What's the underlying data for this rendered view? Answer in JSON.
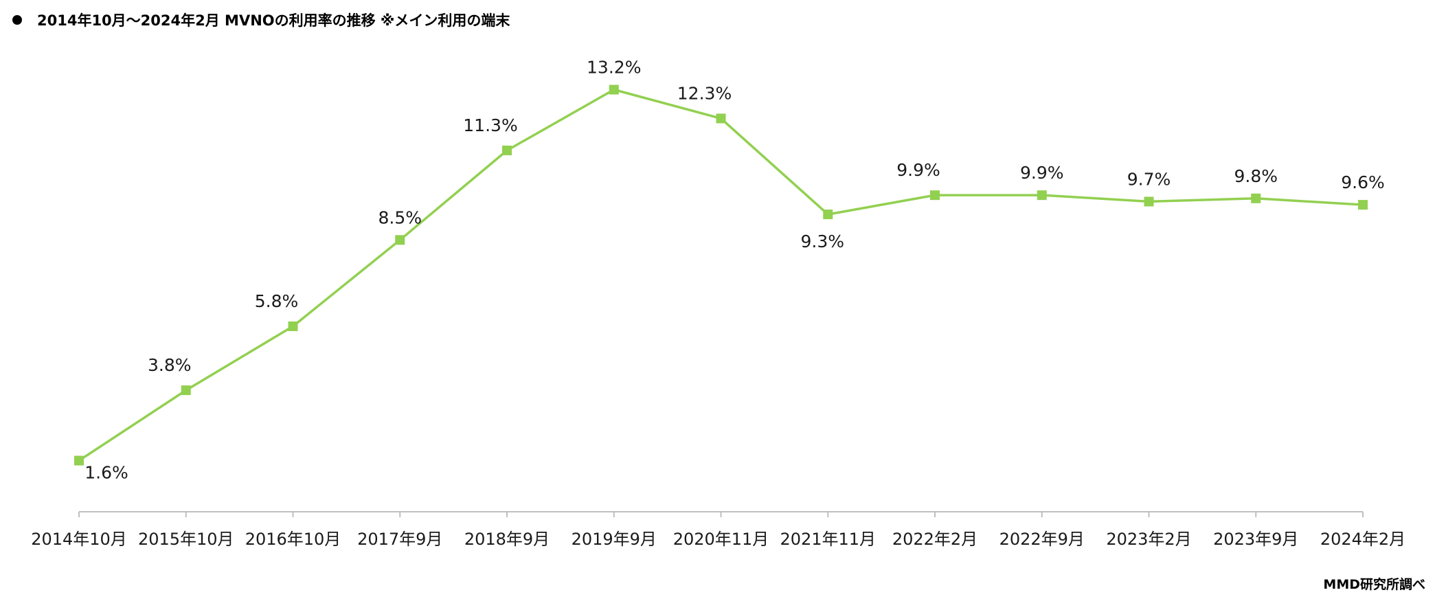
{
  "title": {
    "bullet": "●",
    "text": "2014年10月～2024年2月  MVNOの利用率の推移  ※メイン利用の端末"
  },
  "source": "MMD研究所調べ",
  "colors": {
    "line": "#92d050",
    "axis": "#bfbfbf",
    "text": "#1a1a1a"
  },
  "chart_data": {
    "type": "line",
    "title": "2014年10月～2024年2月  MVNOの利用率の推移  ※メイン利用の端末",
    "xlabel": "",
    "ylabel": "",
    "categories": [
      "2014年10月",
      "2015年10月",
      "2016年10月",
      "2017年9月",
      "2018年9月",
      "2019年9月",
      "2020年11月",
      "2021年11月",
      "2022年2月",
      "2022年9月",
      "2023年2月",
      "2023年9月",
      "2024年2月"
    ],
    "series": [
      {
        "values": [
          1.6,
          3.8,
          5.8,
          8.5,
          11.3,
          13.2,
          12.3,
          9.3,
          9.9,
          9.9,
          9.7,
          9.8,
          9.6
        ],
        "labels": [
          "1.6%",
          "3.8%",
          "5.8%",
          "8.5%",
          "11.3%",
          "13.2%",
          "12.3%",
          "9.3%",
          "9.9%",
          "9.9%",
          "9.7%",
          "9.8%",
          "9.6%"
        ],
        "label_positions": [
          "below-right",
          "above-left",
          "above-left",
          "above",
          "above-left",
          "above",
          "above-left",
          "below",
          "above-left",
          "above",
          "above",
          "above",
          "above"
        ],
        "marker": "square"
      }
    ],
    "ylim": [
      0,
      14.5
    ],
    "grid": false,
    "legend": "none"
  }
}
